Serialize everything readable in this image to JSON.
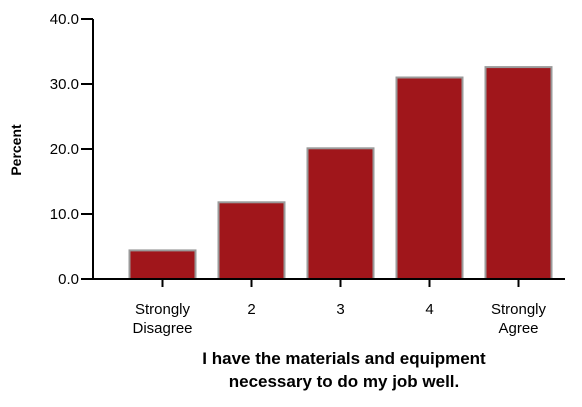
{
  "chart_data": {
    "type": "bar",
    "title": "",
    "xlabel": "I have the materials and equipment necessary to do my job well.",
    "xlabel_lines": [
      "I have the materials and equipment",
      "necessary to do my job well."
    ],
    "ylabel": "Percent",
    "ylim": [
      0,
      40
    ],
    "yticks": [
      0,
      10,
      20,
      30,
      40
    ],
    "ytick_labels": [
      "0.0",
      "10.0",
      "20.0",
      "30.0",
      "40.0"
    ],
    "categories": [
      "Strongly Disagree",
      "2",
      "3",
      "4",
      "Strongly Agree"
    ],
    "category_lines": [
      [
        "Strongly",
        "Disagree"
      ],
      [
        "2"
      ],
      [
        "3"
      ],
      [
        "4"
      ],
      [
        "Strongly",
        "Agree"
      ]
    ],
    "values": [
      4.4,
      11.8,
      20.1,
      31.0,
      32.6
    ],
    "grid": false,
    "legend": "none"
  },
  "colors": {
    "bar_fill": "#a0161b",
    "bar_stroke": "#9a9a9a",
    "axis": "#000000"
  }
}
